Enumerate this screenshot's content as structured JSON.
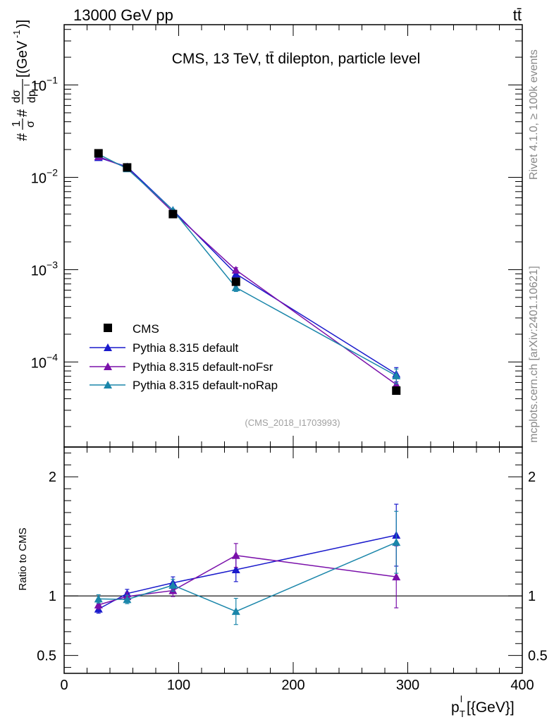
{
  "header": {
    "left_label": "13000 GeV pp",
    "right_label": "tt̄"
  },
  "side_labels": {
    "rivet": "Rivet 4.1.0, ≥ 100k events",
    "mcplots": "mcplots.cern.ch [arXiv:2401.10621]"
  },
  "colors": {
    "data": "#000000",
    "default": "#1a1acc",
    "noFsr": "#7a10aa",
    "noRap": "#1a86aa"
  },
  "chart_data": [
    {
      "type": "line",
      "title": "CMS, 13 TeV, tt̄ dilepton, particle level",
      "watermark": "(CMS_2018_I1703993)",
      "yscale": "log",
      "ylabel_parts": {
        "hash1": "#",
        "numer1": "1",
        "denom1": "σ",
        "hash2": "#",
        "numer2": "dσ",
        "denom2": "dp",
        "sub": "T",
        "sup": "l",
        "unit": "[(GeV",
        "unit_sup": "-1",
        "unit_end": ")]"
      },
      "xlim": [
        0,
        400
      ],
      "ylim": [
        1.2e-05,
        0.45
      ],
      "yticks": [
        {
          "value": 0.1,
          "base": "10",
          "exp": "−1"
        },
        {
          "value": 0.01,
          "base": "10",
          "exp": "−2"
        },
        {
          "value": 0.001,
          "base": "10",
          "exp": "−3"
        },
        {
          "value": 0.0001,
          "base": "10",
          "exp": "−4"
        }
      ],
      "legend_position": "lower-left",
      "x": [
        30,
        55,
        95,
        150,
        290
      ],
      "series": [
        {
          "name": "CMS",
          "key": "data",
          "marker": "square",
          "values": [
            0.0182,
            0.0128,
            0.004,
            0.00074,
            4.9e-05
          ],
          "err_up": [
            0.0006,
            0.0004,
            0.0002,
            5e-05,
            4e-06
          ],
          "err_dn": [
            0.0006,
            0.0004,
            0.0002,
            5e-05,
            4e-06
          ]
        },
        {
          "name": "Pythia 8.315 default",
          "key": "default",
          "marker": "triangle",
          "values": [
            0.0164,
            0.013,
            0.0044,
            0.0009,
            7.4e-05
          ],
          "err_up": [
            0.0003,
            0.0003,
            0.00012,
            5e-05,
            1.3e-05
          ],
          "err_dn": [
            0.0003,
            0.0003,
            0.00012,
            5e-05,
            1.3e-05
          ]
        },
        {
          "name": "Pythia 8.315 default-noFsr",
          "key": "noFsr",
          "marker": "triangle",
          "values": [
            0.0168,
            0.0127,
            0.0042,
            0.00099,
            5.7e-05
          ],
          "err_up": [
            0.0003,
            0.0003,
            0.00012,
            6e-05,
            1.2e-05
          ],
          "err_dn": [
            0.0003,
            0.0003,
            0.00012,
            6e-05,
            1.2e-05
          ]
        },
        {
          "name": "Pythia 8.315 default-noRap",
          "key": "noRap",
          "marker": "triangle",
          "values": [
            0.0178,
            0.0124,
            0.0044,
            0.00064,
            7.1e-05
          ],
          "err_up": [
            0.0003,
            0.0003,
            0.00012,
            6e-05,
            1.3e-05
          ],
          "err_dn": [
            0.0003,
            0.0003,
            0.00012,
            6e-05,
            1.3e-05
          ]
        }
      ]
    },
    {
      "type": "line",
      "title": "",
      "ylabel": "Ratio to CMS",
      "xlabel_parts": {
        "main": "p",
        "sub": "T",
        "sup": "l",
        "unit": "[{GeV}]"
      },
      "xlim": [
        0,
        400
      ],
      "ylim": [
        0.35,
        2.25
      ],
      "xticks": [
        0,
        100,
        200,
        300,
        400
      ],
      "yticks": [
        0.5,
        1,
        2
      ],
      "reference_line": 1,
      "x": [
        30,
        55,
        95,
        150,
        290
      ],
      "series": [
        {
          "name": "Pythia 8.315 default",
          "key": "default",
          "values": [
            0.89,
            1.02,
            1.11,
            1.22,
            1.51
          ],
          "err_up": [
            0.035,
            0.035,
            0.05,
            0.1,
            0.26
          ],
          "err_dn": [
            0.035,
            0.035,
            0.05,
            0.1,
            0.26
          ]
        },
        {
          "name": "Pythia 8.315 default-noFsr",
          "key": "noFsr",
          "values": [
            0.925,
            0.995,
            1.045,
            1.34,
            1.16
          ],
          "err_up": [
            0.035,
            0.035,
            0.05,
            0.1,
            0.26
          ],
          "err_dn": [
            0.035,
            0.035,
            0.05,
            0.1,
            0.26
          ]
        },
        {
          "name": "Pythia 8.315 default-noRap",
          "key": "noRap",
          "values": [
            0.975,
            0.97,
            1.09,
            0.87,
            1.45
          ],
          "err_up": [
            0.035,
            0.035,
            0.05,
            0.11,
            0.26
          ],
          "err_dn": [
            0.035,
            0.035,
            0.05,
            0.11,
            0.26
          ]
        }
      ]
    }
  ]
}
